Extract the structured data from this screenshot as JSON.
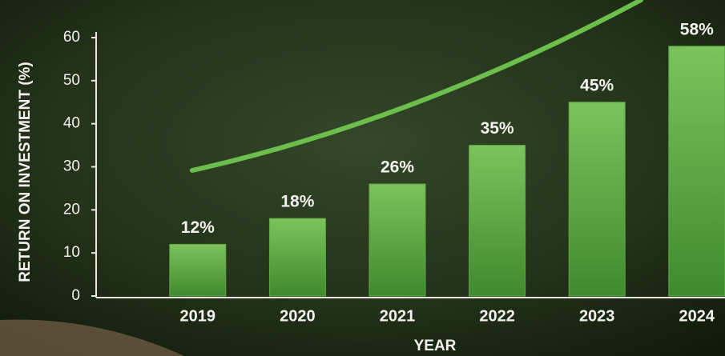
{
  "chart_data": {
    "type": "bar",
    "y_label": "RETURN ON INVESTMENT (%)",
    "x_label": "YEAR",
    "categories": [
      "2019",
      "2020",
      "2021",
      "2022",
      "2023",
      "2024"
    ],
    "values": [
      12,
      18,
      26,
      35,
      45,
      58
    ],
    "value_labels": [
      "12%",
      "18%",
      "26%",
      "35%",
      "45%",
      "58%"
    ],
    "color": "#5fa845",
    "ylim": [
      0,
      60
    ],
    "yticks": [
      0,
      10,
      20,
      30,
      40,
      50,
      60
    ]
  }
}
